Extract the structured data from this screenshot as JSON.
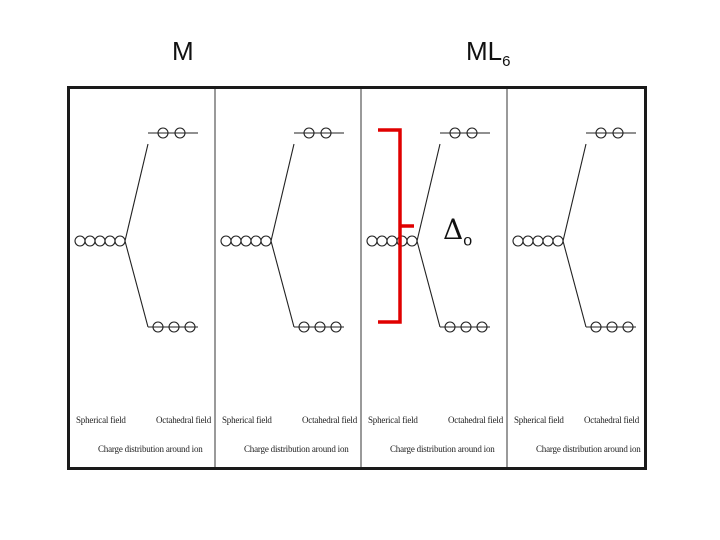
{
  "headers": {
    "left_label": "M",
    "right_label_base": "ML",
    "right_label_sub": "6"
  },
  "panels": [
    {
      "left_caption": "Spherical field",
      "right_caption": "Octahedral field",
      "bottom_caption": "Charge distribution around ion"
    },
    {
      "left_caption": "Spherical field",
      "right_caption": "Octahedral field",
      "bottom_caption": "Charge distribution around ion"
    },
    {
      "left_caption": "Spherical field",
      "right_caption": "Octahedral field",
      "bottom_caption": "Charge distribution around ion"
    },
    {
      "left_caption": "Spherical field",
      "right_caption": "Octahedral field",
      "bottom_caption": "Charge distribution around ion"
    }
  ],
  "splitting": {
    "symbol": "Δ",
    "subscript": "o",
    "highlight_color": "#e00000"
  }
}
